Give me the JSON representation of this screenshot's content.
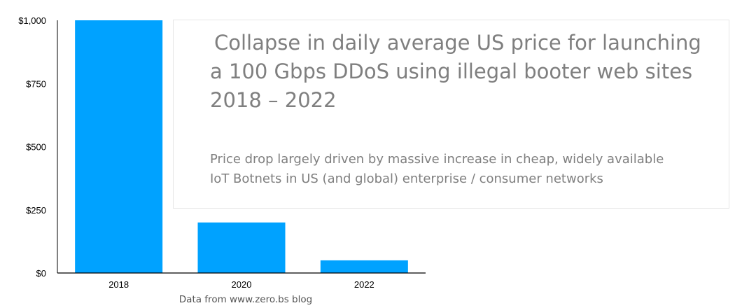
{
  "chart_data": {
    "type": "bar",
    "categories": [
      "2018",
      "2020",
      "2022"
    ],
    "values": [
      1000,
      200,
      50
    ],
    "ylim": [
      0,
      1000
    ],
    "yticks": [
      0,
      250,
      500,
      750,
      1000
    ],
    "ytick_labels": [
      "$0",
      "$250",
      "$500",
      "$750",
      "$1,000"
    ],
    "bar_color": "#00a2ff",
    "grid": false,
    "title_lines": [
      "Collapse in daily average US price for launching",
      "a 100 Gbps DDoS using illegal booter web sites",
      "2018 – 2022"
    ],
    "subtitle_lines": [
      "Price drop largely driven by massive increase in cheap, widely available",
      "IoT Botnets in US (and global) enterprise / consumer networks"
    ],
    "source": "Data from www.zero.bs blog"
  }
}
